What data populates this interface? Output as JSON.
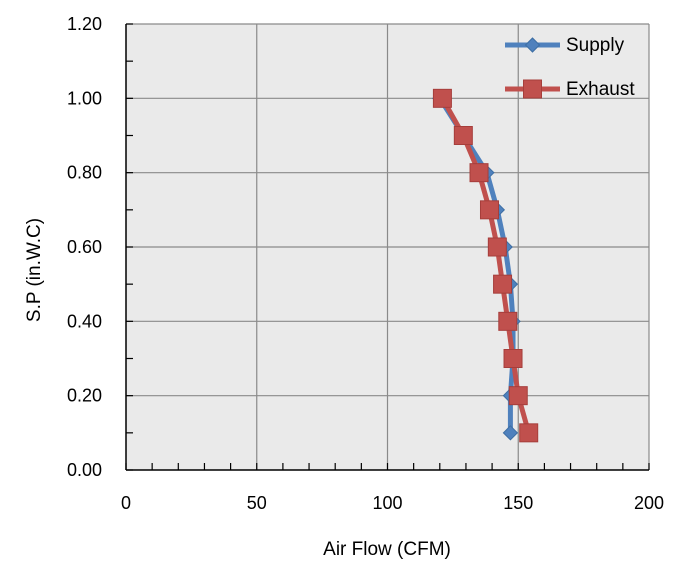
{
  "chart_data": {
    "type": "line",
    "title": "",
    "xlabel": "Air Flow (CFM)",
    "ylabel": "S.P (in.W.C)",
    "xlim": [
      0,
      200
    ],
    "ylim": [
      0,
      1.2
    ],
    "x_ticks": [
      "0",
      "50",
      "100",
      "150",
      "200"
    ],
    "y_ticks": [
      "0.00",
      "0.20",
      "0.40",
      "0.60",
      "0.80",
      "1.00",
      "1.20"
    ],
    "grid": true,
    "legend_position": "top-right",
    "plot_background": "#eaeaea",
    "series": [
      {
        "name": "Supply",
        "color": "#4f81bd",
        "marker": "diamond",
        "points": [
          {
            "x": 120,
            "y": 1.0
          },
          {
            "x": 129,
            "y": 0.9
          },
          {
            "x": 138,
            "y": 0.8
          },
          {
            "x": 142,
            "y": 0.7
          },
          {
            "x": 145,
            "y": 0.6
          },
          {
            "x": 147,
            "y": 0.5
          },
          {
            "x": 148,
            "y": 0.4
          },
          {
            "x": 148,
            "y": 0.3
          },
          {
            "x": 147,
            "y": 0.2
          },
          {
            "x": 147,
            "y": 0.1
          }
        ]
      },
      {
        "name": "Exhaust",
        "color": "#c0504d",
        "marker": "square",
        "points": [
          {
            "x": 121,
            "y": 1.0
          },
          {
            "x": 129,
            "y": 0.9
          },
          {
            "x": 135,
            "y": 0.8
          },
          {
            "x": 139,
            "y": 0.7
          },
          {
            "x": 142,
            "y": 0.6
          },
          {
            "x": 144,
            "y": 0.5
          },
          {
            "x": 146,
            "y": 0.4
          },
          {
            "x": 148,
            "y": 0.3
          },
          {
            "x": 150,
            "y": 0.2
          },
          {
            "x": 154,
            "y": 0.1
          }
        ]
      }
    ]
  }
}
